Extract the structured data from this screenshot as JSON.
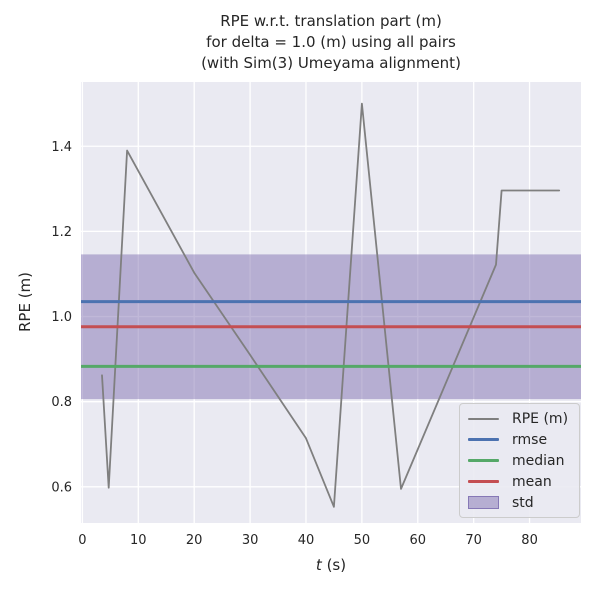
{
  "chart_data": {
    "type": "line",
    "title": "RPE w.r.t. translation part (m)\nfor delta = 1.0 (m) using all pairs\n(with Sim(3) Umeyama alignment)",
    "title_lines": [
      "RPE w.r.t. translation part (m)",
      "for delta = 1.0 (m) using all pairs",
      "(with Sim(3) Umeyama alignment)"
    ],
    "xlabel": "t (s)",
    "xlabel_italic": "t",
    "xlabel_unit": " (s)",
    "ylabel": "RPE (m)",
    "xlim": [
      -0.25,
      89.2
    ],
    "ylim": [
      0.515,
      1.551
    ],
    "xticks": [
      0,
      10,
      20,
      30,
      40,
      50,
      60,
      70,
      80
    ],
    "yticks": [
      0.6,
      0.8,
      1.0,
      1.2,
      1.4
    ],
    "grid": true,
    "legend_position": "lower right",
    "series": [
      {
        "name": "RPE (m)",
        "kind": "line",
        "color": "#7f7f7f",
        "points": [
          [
            3.5,
            0.862
          ],
          [
            4.7,
            0.598
          ],
          [
            8.0,
            1.39
          ],
          [
            20,
            1.103
          ],
          [
            30,
            0.91
          ],
          [
            40,
            0.714
          ],
          [
            45,
            0.553
          ],
          [
            50,
            1.5
          ],
          [
            57,
            0.595
          ],
          [
            74,
            1.122
          ],
          [
            75,
            1.296
          ],
          [
            85.3,
            1.296
          ]
        ]
      },
      {
        "name": "rmse",
        "kind": "hline",
        "color": "#4C72B0",
        "value": 1.035
      },
      {
        "name": "median",
        "kind": "hline",
        "color": "#55A868",
        "value": 0.883
      },
      {
        "name": "mean",
        "kind": "hline",
        "color": "#C44E52",
        "value": 0.976
      },
      {
        "name": "std",
        "kind": "band",
        "color": "#8172B2",
        "range": [
          0.806,
          1.146
        ]
      }
    ],
    "legend": [
      {
        "label": "RPE (m)",
        "swatch": "line",
        "color": "#7f7f7f"
      },
      {
        "label": "rmse",
        "swatch": "line",
        "color": "#4C72B0"
      },
      {
        "label": "median",
        "swatch": "line",
        "color": "#55A868"
      },
      {
        "label": "mean",
        "swatch": "line",
        "color": "#C44E52"
      },
      {
        "label": "std",
        "swatch": "patch",
        "color": "#8172B2"
      }
    ],
    "colors": {
      "figure_bg": "#ffffff",
      "axes_bg": "#EAEAF2",
      "grid": "#ffffff",
      "text": "#262626"
    }
  }
}
